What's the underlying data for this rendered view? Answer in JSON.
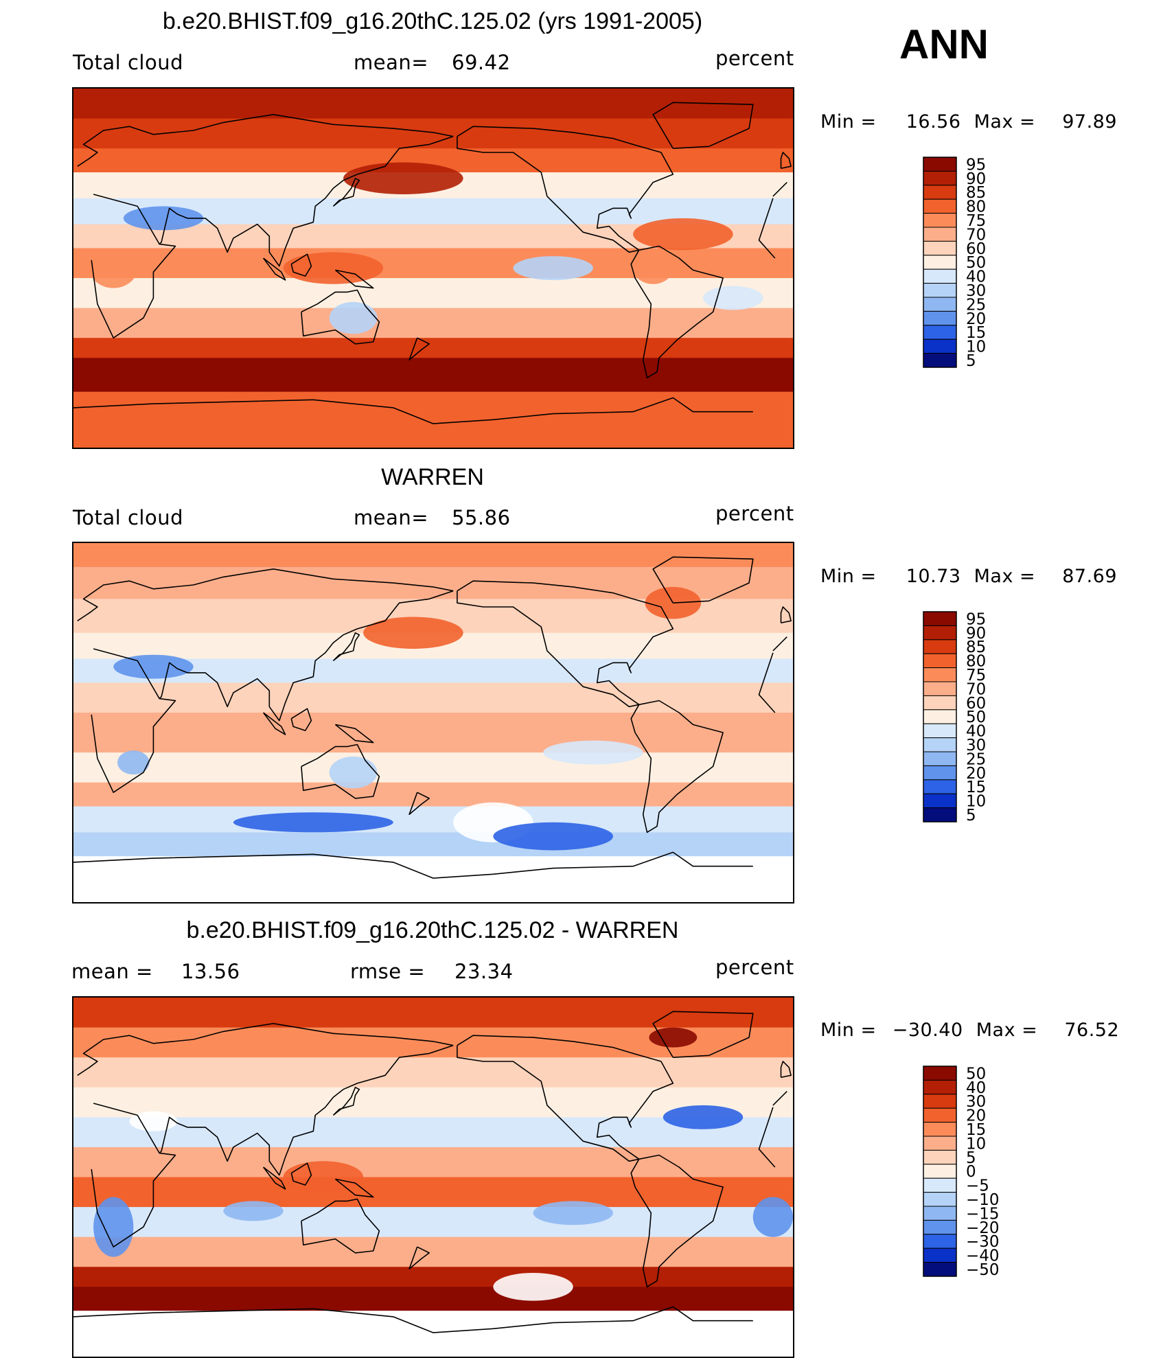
{
  "season": "ANN",
  "chart_data": [
    {
      "type": "heatmap",
      "title": "b.e20.BHIST.f09_g16.20thC.125.02 (yrs 1991-2005)",
      "variable": "Total cloud",
      "stat_label": "mean=",
      "stat_value": "69.42",
      "units": "percent",
      "min_label": "Min =",
      "min_value": "16.56",
      "max_label": "Max =",
      "max_value": "97.89",
      "colorbar_levels": [
        "95",
        "90",
        "85",
        "80",
        "75",
        "70",
        "60",
        "50",
        "40",
        "30",
        "25",
        "20",
        "15",
        "10",
        "5"
      ],
      "colorbar_colors": [
        "#8a0a00",
        "#b31f04",
        "#d83b10",
        "#f2622d",
        "#fb8c5a",
        "#fcae8a",
        "#fdd3bb",
        "#fdf0e2",
        "#d7e8fb",
        "#b5d3f7",
        "#8fb8f2",
        "#5f93ec",
        "#2d63e6",
        "#0a32c8",
        "#040d7c"
      ],
      "map_style": "model"
    },
    {
      "type": "heatmap",
      "title": "WARREN",
      "variable": "Total cloud",
      "stat_label": "mean=",
      "stat_value": "55.86",
      "units": "percent",
      "min_label": "Min =",
      "min_value": "10.73",
      "max_label": "Max =",
      "max_value": "87.69",
      "colorbar_levels": [
        "95",
        "90",
        "85",
        "80",
        "75",
        "70",
        "60",
        "50",
        "40",
        "30",
        "25",
        "20",
        "15",
        "10",
        "5"
      ],
      "colorbar_colors": [
        "#8a0a00",
        "#b31f04",
        "#d83b10",
        "#f2622d",
        "#fb8c5a",
        "#fcae8a",
        "#fdd3bb",
        "#fdf0e2",
        "#d7e8fb",
        "#b5d3f7",
        "#8fb8f2",
        "#5f93ec",
        "#2d63e6",
        "#0a32c8",
        "#040d7c"
      ],
      "map_style": "obs"
    },
    {
      "type": "heatmap",
      "title": "b.e20.BHIST.f09_g16.20thC.125.02 - WARREN",
      "variable": "",
      "stat_label": "mean =",
      "stat_value": "13.56",
      "stat2_label": "rmse =",
      "stat2_value": "23.34",
      "units": "percent",
      "min_label": "Min =",
      "min_value": "−30.40",
      "max_label": "Max =",
      "max_value": "76.52",
      "colorbar_levels": [
        "50",
        "40",
        "30",
        "20",
        "15",
        "10",
        "5",
        "0",
        "−5",
        "−10",
        "−15",
        "−20",
        "−30",
        "−40",
        "−50"
      ],
      "colorbar_colors": [
        "#8a0a00",
        "#b31f04",
        "#d83b10",
        "#f2622d",
        "#fb8c5a",
        "#fcae8a",
        "#fdd3bb",
        "#fdf0e2",
        "#d7e8fb",
        "#b5d3f7",
        "#8fb8f2",
        "#5f93ec",
        "#2d63e6",
        "#0a32c8",
        "#040d7c"
      ],
      "map_style": "diff"
    }
  ]
}
